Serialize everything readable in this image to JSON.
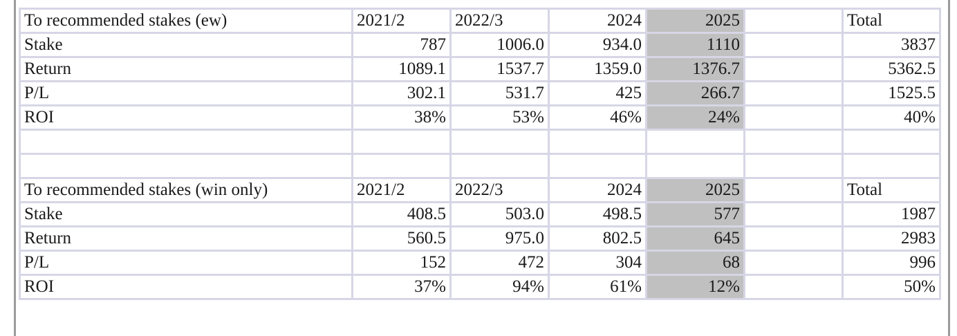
{
  "sections": [
    {
      "header": {
        "title": "To recommended stakes (ew)",
        "periods": [
          "2021/2",
          "2022/3",
          "2024",
          "2025"
        ],
        "total": "Total"
      },
      "rows": [
        {
          "label": "Stake",
          "values": [
            "787",
            "1006.0",
            "934.0",
            "1110"
          ],
          "total": "3837"
        },
        {
          "label": "Return",
          "values": [
            "1089.1",
            "1537.7",
            "1359.0",
            "1376.7"
          ],
          "total": "5362.5"
        },
        {
          "label": "P/L",
          "values": [
            "302.1",
            "531.7",
            "425",
            "266.7"
          ],
          "total": "1525.5"
        },
        {
          "label": "ROI",
          "values": [
            "38%",
            "53%",
            "46%",
            "24%"
          ],
          "total": "40%"
        }
      ]
    },
    {
      "header": {
        "title": "To recommended stakes (win only)",
        "periods": [
          "2021/2",
          "2022/3",
          "2024",
          "2025"
        ],
        "total": "Total"
      },
      "rows": [
        {
          "label": "Stake",
          "values": [
            "408.5",
            "503.0",
            "498.5",
            "577"
          ],
          "total": "1987"
        },
        {
          "label": "Return",
          "values": [
            "560.5",
            "975.0",
            "802.5",
            "645"
          ],
          "total": "2983"
        },
        {
          "label": "P/L",
          "values": [
            "152",
            "472",
            "304",
            "68"
          ],
          "total": "996"
        },
        {
          "label": "ROI",
          "values": [
            "37%",
            "94%",
            "61%",
            "12%"
          ],
          "total": "50%"
        }
      ]
    }
  ]
}
